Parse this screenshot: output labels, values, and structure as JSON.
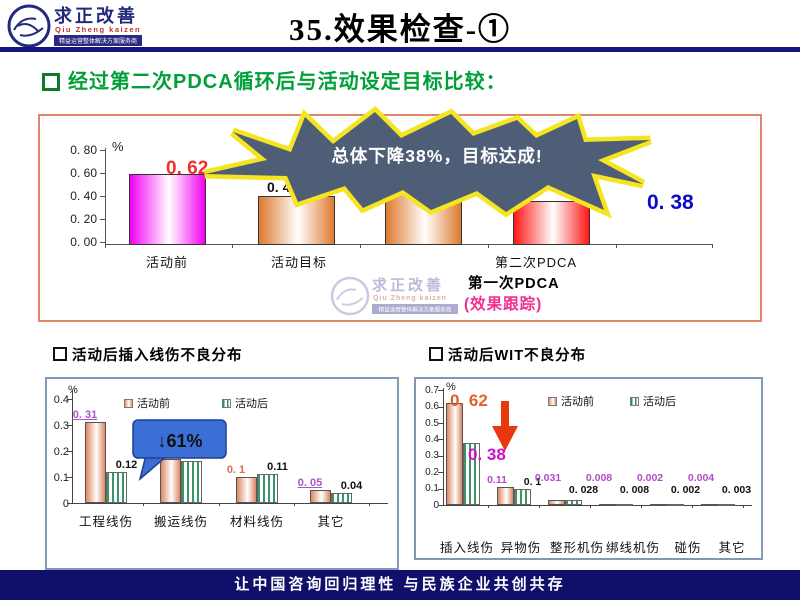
{
  "header": {
    "logo": {
      "name_cn": "求正改善",
      "name_en": "Qiu Zheng kaizen",
      "tagline": "精益运营整体解决方案服务商"
    },
    "title": "35.效果检查-①"
  },
  "section_heading": "经过第二次PDCA循环后与活动设定目标比较：",
  "panels": {
    "left_title": "活动后插入线伤不良分布",
    "right_title": "活动后WIT不良分布"
  },
  "legend": {
    "before": "活动前",
    "after": "活动后"
  },
  "footer": "让中国咨询回归理性 与民族企业共创共存",
  "main_annotations": {
    "unit": "%",
    "starburst": "总体下降38%，目标达成!",
    "bar1_value": "0. 62",
    "bar2_value": "0. 43",
    "bar3_value": "0. 45",
    "side_value": "0. 38",
    "first_pdca": "第一次PDCA",
    "first_pdca_sub": "(效果跟踪)"
  },
  "colors": {
    "navy": "#15157a",
    "heading_green": "#00a038",
    "main_box_border": "#e0876a",
    "sub_box_border": "#8099b8",
    "magenta_bar": "#f200f2",
    "orange_bar": "#dd7a2e",
    "red_bar": "#ff1616",
    "salmon_bar": "#dd8663",
    "green_bar": "#3a9468",
    "starburst_fill": "#4e5e76",
    "starburst_outline": "#f5e520",
    "callout_blue": "#3c6fd6",
    "value_red": "#f03030",
    "value_blue": "#0a0acc",
    "value_magenta": "#cc10cc",
    "value_orange": "#e2602a",
    "label_purple": "#a856c8",
    "annotation_pink": "#f03090"
  },
  "chart_data": [
    {
      "id": "pdca-compare",
      "type": "bar",
      "title": "经过第二次PDCA循环后与活动设定目标比较",
      "ylabel": "%",
      "ylim": [
        0,
        0.8
      ],
      "y_ticks": [
        "0. 80",
        "0. 60",
        "0. 40",
        "0. 20",
        "0. 00"
      ],
      "categories": [
        "活动前",
        "活动目标",
        "第一次PDCA",
        "第二次PDCA"
      ],
      "values": [
        0.62,
        0.43,
        0.45,
        0.38
      ],
      "bar_styles": [
        "g-magenta",
        "g-orange",
        "g-orange",
        "g-red"
      ],
      "axis_labels_visible": [
        "活动前",
        "活动目标",
        "",
        "第二次PDCA"
      ],
      "grid": false,
      "legend_position": "none"
    },
    {
      "id": "insert-defect",
      "type": "bar",
      "title": "活动后插入线伤不良分布",
      "ylabel": "%",
      "ylim": [
        0,
        0.4
      ],
      "y_ticks": [
        "0.4",
        "0.3",
        "0.2",
        "0.1",
        "0"
      ],
      "categories": [
        "工程线伤",
        "搬运线伤",
        "材料线伤",
        "其它"
      ],
      "series": [
        {
          "name": "活动前",
          "values": [
            0.31,
            0.17,
            0.1,
            0.05
          ]
        },
        {
          "name": "活动后",
          "values": [
            0.12,
            0.16,
            0.11,
            0.04
          ]
        }
      ],
      "labels_before": [
        {
          "text": "0. 31",
          "underline": true,
          "color": "#a856c8"
        },
        {
          "text": ""
        },
        {
          "text": "0. 1",
          "color": "#d4705a"
        },
        {
          "text": "0. 05",
          "underline": true,
          "color": "#a856c8"
        }
      ],
      "labels_after": [
        {
          "text": "0.12"
        },
        {
          "text": ""
        },
        {
          "text": "0.11"
        },
        {
          "text": "0.04"
        }
      ],
      "callout": "↓61%",
      "grid": false,
      "legend_position": "top"
    },
    {
      "id": "wit-defect",
      "type": "bar",
      "title": "活动后WIT不良分布",
      "ylabel": "%",
      "ylim": [
        0,
        0.7
      ],
      "y_ticks": [
        "0.7",
        "0.6",
        "0.5",
        "0.4",
        "0.3",
        "0.2",
        "0.1",
        "0"
      ],
      "categories": [
        "插入线伤",
        "异物伤",
        "整形机伤",
        "绑线机伤",
        "碰伤",
        "其它"
      ],
      "series": [
        {
          "name": "活动前",
          "values": [
            0.62,
            0.11,
            0.031,
            0.008,
            0.002,
            0.004
          ]
        },
        {
          "name": "活动后",
          "values": [
            0.38,
            0.1,
            0.028,
            0.008,
            0.002,
            0.003
          ]
        }
      ],
      "labels_before": [
        {
          "text": "0. 62",
          "big": true,
          "color": "#e2602a"
        },
        {
          "text": "0.11",
          "color": "#b44bc8"
        },
        {
          "text": "0.031",
          "color": "#b44bc8"
        },
        {
          "text": "0.008",
          "color": "#b44bc8"
        },
        {
          "text": "0.002",
          "color": "#b44bc8"
        },
        {
          "text": "0.004",
          "color": "#b44bc8"
        }
      ],
      "labels_after": [
        {
          "text": "0. 38",
          "big": true,
          "color": "#cc10cc"
        },
        {
          "text": "0. 1"
        },
        {
          "text": "0. 028"
        },
        {
          "text": "0. 008"
        },
        {
          "text": "0. 002"
        },
        {
          "text": "0. 003"
        }
      ],
      "grid": false,
      "legend_position": "top"
    }
  ]
}
